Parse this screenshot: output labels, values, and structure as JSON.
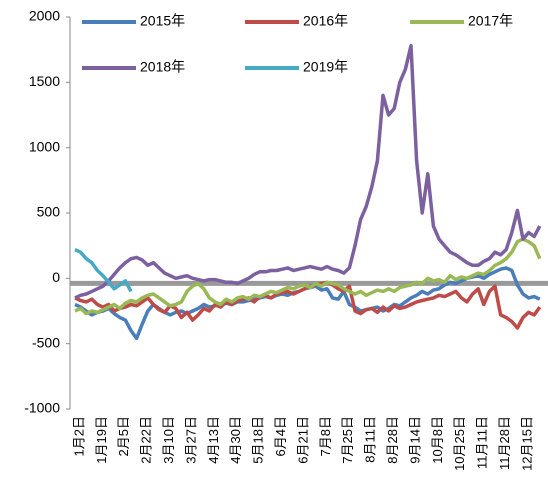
{
  "chart_data": {
    "type": "line",
    "categories": [
      "1月2日",
      null,
      null,
      null,
      "1月19日",
      null,
      null,
      null,
      "2月5日",
      null,
      null,
      null,
      "2月22日",
      null,
      null,
      null,
      "3月10日",
      null,
      null,
      null,
      "3月27日",
      null,
      null,
      null,
      "4月13日",
      null,
      null,
      null,
      "4月30日",
      null,
      null,
      null,
      "5月18日",
      null,
      null,
      null,
      "6月4日",
      null,
      null,
      null,
      "6月21日",
      null,
      null,
      null,
      "7月8日",
      null,
      null,
      null,
      "7月25日",
      null,
      null,
      null,
      "8月11日",
      null,
      null,
      null,
      "8月28日",
      null,
      null,
      null,
      "9月14日",
      null,
      null,
      null,
      "10月8日",
      null,
      null,
      null,
      "10月25日",
      null,
      null,
      null,
      "11月11日",
      null,
      null,
      null,
      "11月28日",
      null,
      null,
      null,
      "12月15日",
      null,
      null,
      null
    ],
    "series": [
      {
        "name": "2015年",
        "color": "#4a7ebb",
        "values": [
          -200,
          -220,
          -250,
          -280,
          -260,
          -250,
          -230,
          -270,
          -300,
          -320,
          -400,
          -460,
          -350,
          -250,
          -200,
          -230,
          -260,
          -280,
          -260,
          -250,
          -270,
          -250,
          -230,
          -200,
          -220,
          -210,
          -200,
          -190,
          -200,
          -180,
          -180,
          -170,
          -160,
          -150,
          -140,
          -150,
          -130,
          -120,
          -130,
          -110,
          -100,
          -80,
          -70,
          -60,
          -90,
          -80,
          -150,
          -160,
          -100,
          -200,
          -220,
          -250,
          -240,
          -230,
          -220,
          -250,
          -230,
          -200,
          -210,
          -180,
          -150,
          -130,
          -100,
          -120,
          -90,
          -80,
          -50,
          -30,
          -40,
          -20,
          0,
          10,
          20,
          0,
          30,
          50,
          70,
          80,
          60,
          -50,
          -120,
          -150,
          -140,
          -160
        ]
      },
      {
        "name": "2016年",
        "color": "#be4b48",
        "values": [
          -150,
          -170,
          -180,
          -160,
          -200,
          -220,
          -200,
          -250,
          -230,
          -220,
          -200,
          -210,
          -180,
          -150,
          -200,
          -240,
          -260,
          -210,
          -230,
          -300,
          -260,
          -320,
          -280,
          -230,
          -250,
          -200,
          -220,
          -180,
          -200,
          -170,
          -160,
          -150,
          -180,
          -140,
          -130,
          -150,
          -120,
          -110,
          -100,
          -120,
          -100,
          -80,
          -60,
          -50,
          -40,
          -30,
          -50,
          -80,
          -100,
          -60,
          -250,
          -270,
          -240,
          -230,
          -260,
          -220,
          -250,
          -210,
          -230,
          -220,
          -200,
          -180,
          -170,
          -160,
          -150,
          -130,
          -140,
          -120,
          -100,
          -150,
          -180,
          -120,
          -80,
          -200,
          -100,
          -60,
          -280,
          -300,
          -330,
          -380,
          -300,
          -260,
          -280,
          -220
        ]
      },
      {
        "name": "2017年",
        "color": "#98b954",
        "values": [
          -250,
          -230,
          -270,
          -250,
          -260,
          -240,
          -220,
          -200,
          -230,
          -190,
          -170,
          -180,
          -150,
          -130,
          -120,
          -150,
          -180,
          -210,
          -200,
          -180,
          -100,
          -60,
          -40,
          -80,
          -150,
          -180,
          -200,
          -160,
          -180,
          -150,
          -140,
          -160,
          -130,
          -140,
          -120,
          -100,
          -110,
          -90,
          -70,
          -80,
          -60,
          -50,
          -70,
          -40,
          -60,
          -30,
          -40,
          -50,
          -80,
          -100,
          -120,
          -100,
          -130,
          -110,
          -90,
          -100,
          -80,
          -100,
          -70,
          -60,
          -50,
          -30,
          -40,
          0,
          -20,
          -10,
          -30,
          20,
          -10,
          10,
          0,
          20,
          40,
          30,
          60,
          100,
          120,
          150,
          200,
          280,
          300,
          280,
          250,
          150
        ]
      },
      {
        "name": "2018年",
        "color": "#7d60a0",
        "values": [
          -150,
          -130,
          -120,
          -100,
          -80,
          -60,
          -20,
          30,
          80,
          120,
          150,
          160,
          140,
          100,
          120,
          80,
          40,
          20,
          0,
          10,
          20,
          0,
          -10,
          -20,
          -10,
          -10,
          -20,
          -30,
          -30,
          -40,
          -20,
          0,
          30,
          50,
          50,
          60,
          60,
          70,
          80,
          60,
          70,
          80,
          90,
          80,
          70,
          90,
          70,
          60,
          40,
          80,
          250,
          450,
          550,
          700,
          900,
          1400,
          1250,
          1300,
          1500,
          1600,
          1780,
          900,
          500,
          800,
          400,
          300,
          250,
          200,
          180,
          150,
          120,
          100,
          100,
          130,
          150,
          200,
          180,
          220,
          350,
          520,
          300,
          350,
          320,
          400
        ]
      },
      {
        "name": "2019年",
        "color": "#46aac5",
        "values": [
          220,
          200,
          150,
          120,
          60,
          20,
          -30,
          -80,
          -50,
          -20,
          -100,
          null,
          null,
          null,
          null,
          null,
          null,
          null,
          null,
          null,
          null,
          null,
          null,
          null,
          null,
          null,
          null,
          null,
          null,
          null,
          null,
          null,
          null,
          null,
          null,
          null,
          null,
          null,
          null,
          null,
          null,
          null,
          null,
          null,
          null,
          null,
          null,
          null,
          null,
          null,
          null,
          null,
          null,
          null,
          null,
          null,
          null,
          null,
          null,
          null,
          null,
          null,
          null,
          null,
          null,
          null,
          null,
          null,
          null,
          null,
          null,
          null,
          null,
          null,
          null,
          null,
          null,
          null,
          null,
          null,
          null,
          null,
          null,
          null
        ]
      }
    ],
    "ylim": [
      -1000,
      2000
    ],
    "yticks": [
      -1000,
      -500,
      0,
      500,
      1000,
      1500,
      2000
    ]
  }
}
